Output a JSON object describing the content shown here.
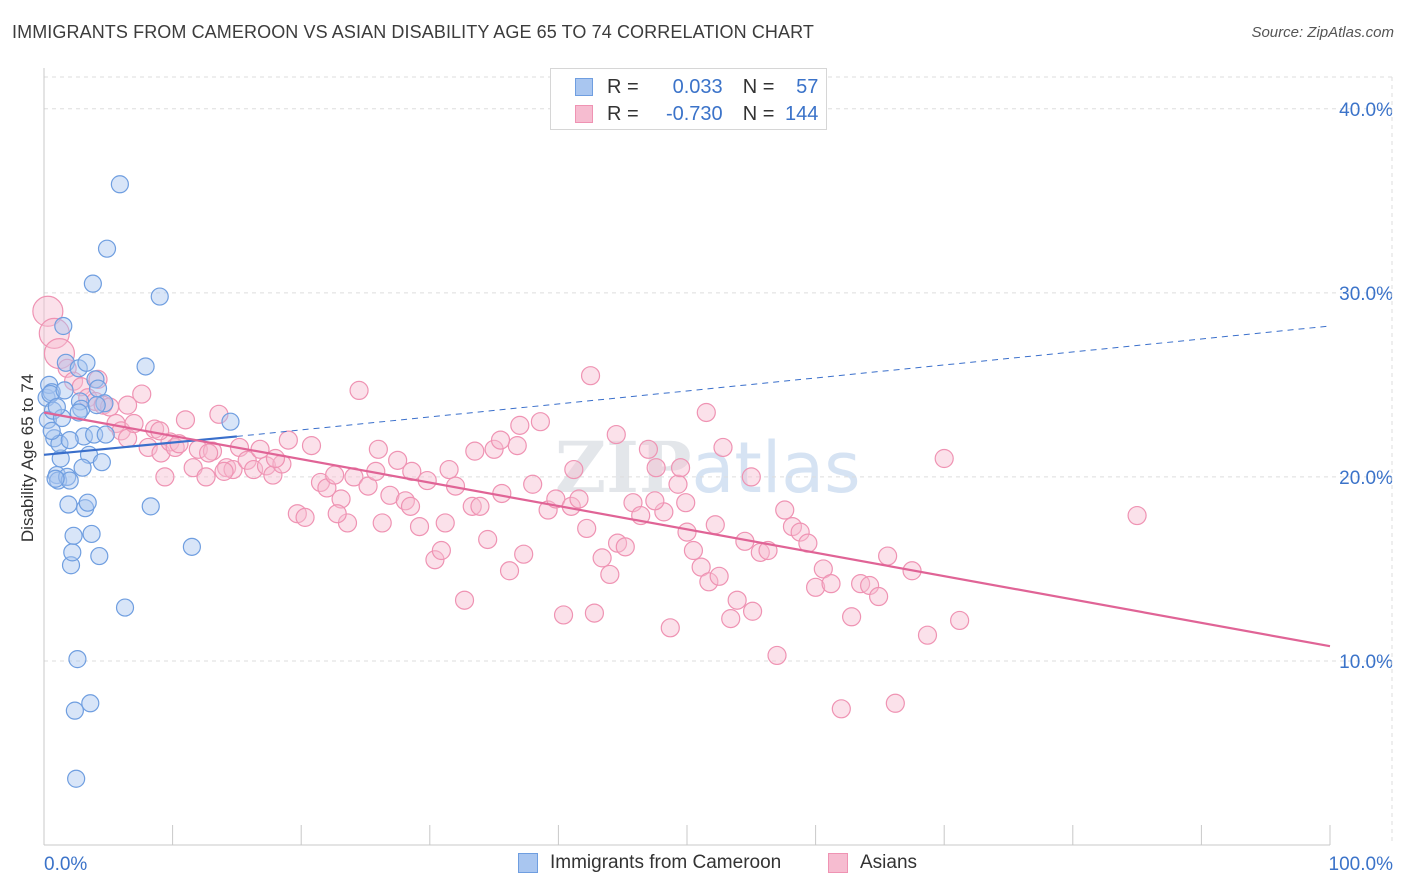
{
  "title": "IMMIGRANTS FROM CAMEROON VS ASIAN DISABILITY AGE 65 TO 74 CORRELATION CHART",
  "source": "Source: ZipAtlas.com",
  "watermark": "ZIPatlas",
  "legend": {
    "row1": {
      "r_label": "R =",
      "r_value": "0.033",
      "n_label": "N =",
      "n_value": "57"
    },
    "row2": {
      "r_label": "R =",
      "r_value": "-0.730",
      "n_label": "N =",
      "n_value": "144"
    }
  },
  "colors": {
    "blue_fill": "#a9c6f0",
    "blue_stroke": "#6f9ee0",
    "blue_line": "#3a6fcb",
    "pink_fill": "#f6bcd0",
    "pink_stroke": "#ef93b3",
    "pink_line": "#e06496",
    "axis_text": "#3b73c9",
    "grid": "#dddddd"
  },
  "chart_data": {
    "type": "scatter",
    "title": "IMMIGRANTS FROM CAMEROON VS ASIAN DISABILITY AGE 65 TO 74 CORRELATION CHART",
    "xlabel": "",
    "ylabel": "Disability Age 65 to 74",
    "xlim": [
      0,
      100
    ],
    "ylim": [
      0,
      42
    ],
    "x_tick_labels": [
      "0.0%",
      "100.0%"
    ],
    "y_ticks": [
      10,
      20,
      30,
      40
    ],
    "y_tick_labels": [
      "10.0%",
      "20.0%",
      "30.0%",
      "40.0%"
    ],
    "grid": true,
    "legend_position": "bottom",
    "series": [
      {
        "name": "Immigrants from Cameroon",
        "color": "#6f9ee0",
        "r": 0.033,
        "n": 57,
        "trend": {
          "x": [
            0,
            15
          ],
          "y": [
            21.2,
            22.2
          ],
          "dashed_extension": {
            "x": [
              15,
              100
            ],
            "y": [
              22.2,
              28.2
            ]
          }
        },
        "points": [
          [
            0.2,
            24.3
          ],
          [
            0.3,
            23.1
          ],
          [
            0.4,
            25.0
          ],
          [
            0.6,
            24.6
          ],
          [
            0.7,
            23.6
          ],
          [
            0.8,
            22.1
          ],
          [
            1.0,
            20.1
          ],
          [
            1.1,
            19.8
          ],
          [
            1.3,
            21.0
          ],
          [
            1.4,
            23.2
          ],
          [
            1.5,
            28.2
          ],
          [
            1.7,
            26.2
          ],
          [
            1.8,
            20.0
          ],
          [
            1.9,
            18.5
          ],
          [
            2.0,
            19.8
          ],
          [
            2.1,
            15.2
          ],
          [
            2.2,
            15.9
          ],
          [
            2.3,
            16.8
          ],
          [
            2.4,
            7.3
          ],
          [
            2.5,
            3.6
          ],
          [
            2.6,
            10.1
          ],
          [
            2.7,
            25.9
          ],
          [
            2.8,
            24.1
          ],
          [
            2.9,
            23.7
          ],
          [
            3.1,
            22.2
          ],
          [
            3.2,
            18.3
          ],
          [
            3.3,
            26.2
          ],
          [
            3.4,
            18.6
          ],
          [
            3.5,
            21.2
          ],
          [
            3.6,
            7.7
          ],
          [
            3.7,
            16.9
          ],
          [
            3.8,
            30.5
          ],
          [
            3.9,
            22.3
          ],
          [
            4.0,
            25.3
          ],
          [
            4.2,
            24.8
          ],
          [
            4.3,
            15.7
          ],
          [
            4.5,
            20.8
          ],
          [
            4.7,
            24.0
          ],
          [
            4.8,
            22.3
          ],
          [
            4.9,
            32.4
          ],
          [
            5.9,
            35.9
          ],
          [
            6.3,
            12.9
          ],
          [
            7.9,
            26.0
          ],
          [
            8.3,
            18.4
          ],
          [
            9.0,
            29.8
          ],
          [
            11.5,
            16.2
          ],
          [
            14.5,
            23.0
          ],
          [
            0.5,
            24.5
          ],
          [
            1.2,
            21.8
          ],
          [
            2.0,
            22.0
          ],
          [
            0.9,
            19.9
          ],
          [
            1.6,
            24.7
          ],
          [
            2.7,
            23.5
          ],
          [
            3.0,
            20.5
          ],
          [
            4.1,
            23.9
          ],
          [
            1.0,
            23.8
          ],
          [
            0.6,
            22.5
          ]
        ]
      },
      {
        "name": "Asians",
        "color": "#ef93b3",
        "r": -0.73,
        "n": 144,
        "trend": {
          "x": [
            0,
            100
          ],
          "y": [
            23.5,
            10.8
          ]
        },
        "points": [
          [
            0.3,
            29.0
          ],
          [
            0.8,
            27.8
          ],
          [
            1.2,
            26.7
          ],
          [
            1.8,
            25.9
          ],
          [
            2.3,
            25.2
          ],
          [
            2.9,
            24.9
          ],
          [
            3.4,
            24.3
          ],
          [
            4.0,
            24.1
          ],
          [
            4.6,
            23.9
          ],
          [
            5.1,
            23.8
          ],
          [
            5.6,
            22.9
          ],
          [
            6.0,
            22.5
          ],
          [
            6.5,
            22.1
          ],
          [
            7.0,
            22.9
          ],
          [
            7.6,
            24.5
          ],
          [
            8.1,
            21.6
          ],
          [
            8.6,
            22.6
          ],
          [
            9.1,
            21.3
          ],
          [
            9.4,
            20.0
          ],
          [
            9.8,
            21.9
          ],
          [
            10.2,
            21.6
          ],
          [
            10.5,
            21.8
          ],
          [
            11.0,
            23.1
          ],
          [
            11.6,
            20.5
          ],
          [
            12.0,
            21.5
          ],
          [
            12.6,
            20.0
          ],
          [
            13.1,
            21.4
          ],
          [
            13.6,
            23.4
          ],
          [
            14.2,
            20.5
          ],
          [
            14.7,
            20.4
          ],
          [
            15.2,
            21.6
          ],
          [
            15.8,
            20.9
          ],
          [
            16.3,
            20.4
          ],
          [
            16.8,
            21.5
          ],
          [
            17.3,
            20.6
          ],
          [
            17.8,
            20.1
          ],
          [
            18.5,
            20.7
          ],
          [
            19.0,
            22.0
          ],
          [
            19.7,
            18.0
          ],
          [
            20.3,
            17.8
          ],
          [
            20.8,
            21.7
          ],
          [
            21.5,
            19.7
          ],
          [
            22.0,
            19.4
          ],
          [
            22.6,
            20.1
          ],
          [
            23.1,
            18.8
          ],
          [
            23.6,
            17.5
          ],
          [
            24.1,
            20.0
          ],
          [
            24.5,
            24.7
          ],
          [
            25.2,
            19.5
          ],
          [
            25.8,
            20.3
          ],
          [
            26.3,
            17.5
          ],
          [
            26.9,
            19.0
          ],
          [
            27.5,
            20.9
          ],
          [
            28.1,
            18.7
          ],
          [
            28.6,
            20.3
          ],
          [
            29.2,
            17.3
          ],
          [
            29.8,
            19.8
          ],
          [
            30.4,
            15.5
          ],
          [
            30.9,
            16.0
          ],
          [
            31.5,
            20.4
          ],
          [
            32.0,
            19.5
          ],
          [
            32.7,
            13.3
          ],
          [
            33.3,
            18.4
          ],
          [
            33.9,
            18.4
          ],
          [
            34.5,
            16.6
          ],
          [
            35.0,
            21.5
          ],
          [
            35.6,
            19.1
          ],
          [
            36.2,
            14.9
          ],
          [
            36.8,
            21.7
          ],
          [
            37.3,
            15.8
          ],
          [
            38.0,
            19.6
          ],
          [
            38.6,
            23.0
          ],
          [
            39.2,
            18.2
          ],
          [
            39.8,
            18.8
          ],
          [
            40.4,
            12.5
          ],
          [
            41.0,
            18.4
          ],
          [
            41.6,
            18.8
          ],
          [
            42.2,
            17.2
          ],
          [
            42.8,
            12.6
          ],
          [
            43.4,
            15.6
          ],
          [
            44.0,
            14.7
          ],
          [
            44.6,
            16.4
          ],
          [
            45.2,
            16.2
          ],
          [
            45.8,
            18.6
          ],
          [
            46.4,
            17.9
          ],
          [
            47.0,
            21.5
          ],
          [
            47.6,
            20.5
          ],
          [
            48.2,
            18.1
          ],
          [
            48.7,
            11.8
          ],
          [
            49.3,
            19.6
          ],
          [
            49.9,
            18.6
          ],
          [
            50.5,
            16.0
          ],
          [
            51.1,
            15.1
          ],
          [
            51.7,
            14.3
          ],
          [
            52.2,
            17.4
          ],
          [
            52.8,
            21.6
          ],
          [
            53.4,
            12.3
          ],
          [
            53.9,
            13.3
          ],
          [
            54.5,
            16.5
          ],
          [
            55.1,
            12.7
          ],
          [
            55.7,
            15.9
          ],
          [
            56.3,
            16.0
          ],
          [
            57.0,
            10.3
          ],
          [
            57.6,
            18.2
          ],
          [
            58.2,
            17.3
          ],
          [
            58.8,
            17.0
          ],
          [
            59.4,
            16.4
          ],
          [
            60.0,
            14.0
          ],
          [
            60.6,
            15.0
          ],
          [
            61.2,
            14.2
          ],
          [
            62.0,
            7.4
          ],
          [
            62.8,
            12.4
          ],
          [
            63.5,
            14.2
          ],
          [
            64.2,
            14.1
          ],
          [
            64.9,
            13.5
          ],
          [
            65.6,
            15.7
          ],
          [
            66.2,
            7.7
          ],
          [
            67.5,
            14.9
          ],
          [
            68.7,
            11.4
          ],
          [
            70.0,
            21.0
          ],
          [
            71.2,
            12.2
          ],
          [
            85.0,
            17.9
          ],
          [
            44.5,
            22.3
          ],
          [
            47.5,
            18.7
          ],
          [
            50.0,
            17.0
          ],
          [
            51.5,
            23.5
          ],
          [
            52.5,
            14.6
          ],
          [
            33.5,
            21.4
          ],
          [
            37.0,
            22.8
          ],
          [
            41.2,
            20.4
          ],
          [
            26.0,
            21.5
          ],
          [
            18.0,
            21.0
          ],
          [
            22.8,
            18.0
          ],
          [
            14.0,
            20.3
          ],
          [
            9.0,
            22.5
          ],
          [
            12.8,
            21.3
          ],
          [
            6.5,
            23.9
          ],
          [
            4.2,
            25.3
          ],
          [
            31.2,
            17.5
          ],
          [
            35.5,
            22.0
          ],
          [
            28.5,
            18.4
          ],
          [
            49.5,
            20.5
          ],
          [
            55.0,
            20.0
          ],
          [
            42.5,
            25.5
          ]
        ]
      }
    ]
  },
  "bottom_legend": [
    "Immigrants from Cameroon",
    "Asians"
  ]
}
